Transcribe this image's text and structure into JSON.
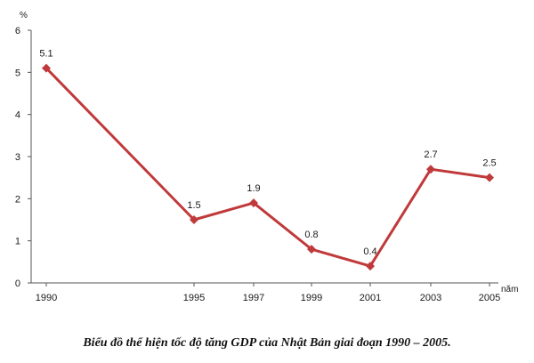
{
  "chart_data": {
    "type": "line",
    "title": "Biểu đồ thể hiện tốc độ tăng GDP của Nhật Bản giai đoạn 1990 – 2005.",
    "xlabel": "năm",
    "ylabel": "%",
    "x": [
      1990,
      1995,
      1997,
      1999,
      2001,
      2003,
      2005
    ],
    "series": [
      {
        "values": [
          5.1,
          1.5,
          1.9,
          0.8,
          0.4,
          2.7,
          2.5
        ]
      }
    ],
    "data_labels": [
      "5.1",
      "1.5",
      "1.9",
      "0.8",
      "0.4",
      "2.7",
      "2.5"
    ],
    "x_tick_labels": [
      "1990",
      "1995",
      "1997",
      "1999",
      "2001",
      "2003",
      "2005"
    ],
    "y_tick_labels": [
      "0",
      "1",
      "2",
      "3",
      "4",
      "5",
      "6"
    ],
    "ylim": [
      0,
      6
    ],
    "grid": false,
    "legend": "none",
    "line_color": "#c0393b"
  }
}
